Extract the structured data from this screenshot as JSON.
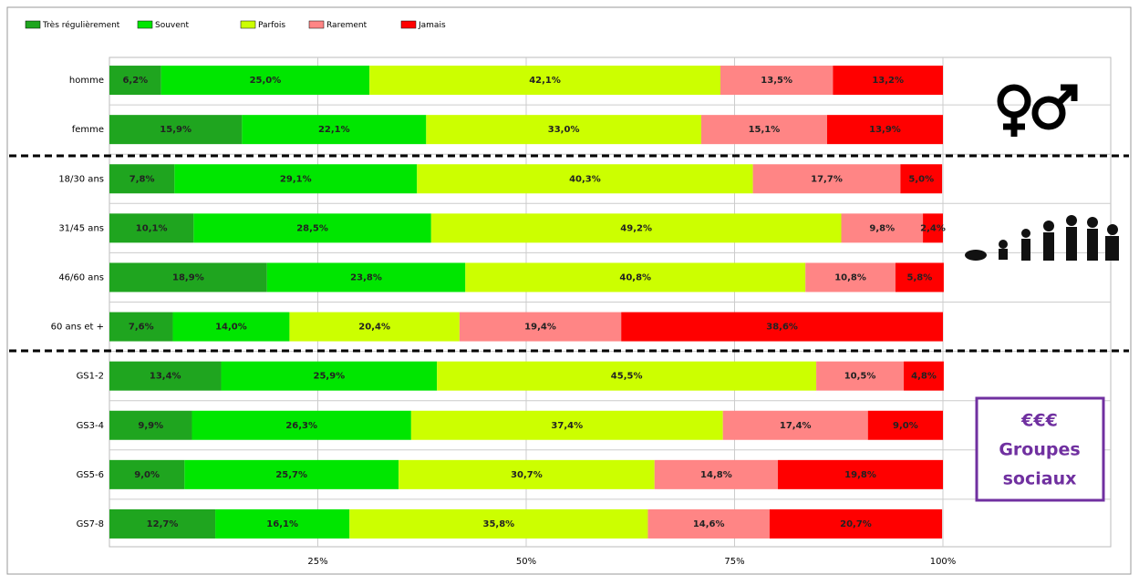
{
  "chart_data": {
    "type": "bar",
    "orientation": "horizontal",
    "stacked": true,
    "categories": [
      "homme",
      "femme",
      "18/30 ans",
      "31/45 ans",
      "46/60 ans",
      "60 ans et +",
      "GS1-2",
      "GS3-4",
      "GS5-6",
      "GS7-8"
    ],
    "series": [
      {
        "name": "Très régulièrement",
        "color": "#1fa51f",
        "values": [
          6.2,
          15.9,
          7.8,
          10.1,
          18.9,
          7.6,
          13.4,
          9.9,
          9.0,
          12.7
        ],
        "value_labels": [
          "6,2%",
          "15,9%",
          "7,8%",
          "10,1%",
          "18,9%",
          "7,6%",
          "13,4%",
          "9,9%",
          "9,0%",
          "12,7%"
        ]
      },
      {
        "name": "Souvent",
        "color": "#00e600",
        "values": [
          25.0,
          22.1,
          29.1,
          28.5,
          23.8,
          14.0,
          25.9,
          26.3,
          25.7,
          16.1
        ],
        "value_labels": [
          "25,0%",
          "22,1%",
          "29,1%",
          "28,5%",
          "23,8%",
          "14,0%",
          "25,9%",
          "26,3%",
          "25,7%",
          "16,1%"
        ]
      },
      {
        "name": "Parfois",
        "color": "#ccff00",
        "values": [
          42.1,
          33.0,
          40.3,
          49.2,
          40.8,
          20.4,
          45.5,
          37.4,
          30.7,
          35.8
        ],
        "value_labels": [
          "42,1%",
          "33,0%",
          "40,3%",
          "49,2%",
          "40,8%",
          "20,4%",
          "45,5%",
          "37,4%",
          "30,7%",
          "35,8%"
        ]
      },
      {
        "name": "Rarement",
        "color": "#ff8585",
        "values": [
          13.5,
          15.1,
          17.7,
          9.8,
          10.8,
          19.4,
          10.5,
          17.4,
          14.8,
          14.6
        ],
        "value_labels": [
          "13,5%",
          "15,1%",
          "17,7%",
          "9,8%",
          "10,8%",
          "19,4%",
          "10,5%",
          "17,4%",
          "14,8%",
          "14,6%"
        ]
      },
      {
        "name": "Jamais",
        "color": "#ff0000",
        "values": [
          13.2,
          13.9,
          5.0,
          2.4,
          5.8,
          38.6,
          4.8,
          9.0,
          19.8,
          20.7
        ],
        "value_labels": [
          "13,2%",
          "13,9%",
          "5,0%",
          "2,4%",
          "5,8%",
          "38,6%",
          "4,8%",
          "9,0%",
          "19,8%",
          "20,7%"
        ]
      }
    ],
    "xlim": [
      0,
      100
    ],
    "xticks": [
      {
        "value": 25,
        "label": "25%"
      },
      {
        "value": 50,
        "label": "50%"
      },
      {
        "value": 75,
        "label": "75%"
      },
      {
        "value": 100,
        "label": "100%"
      }
    ],
    "grid": true,
    "legend": "top-left",
    "annotation": [
      "€€€",
      "Groupes",
      "sociaux"
    ]
  }
}
